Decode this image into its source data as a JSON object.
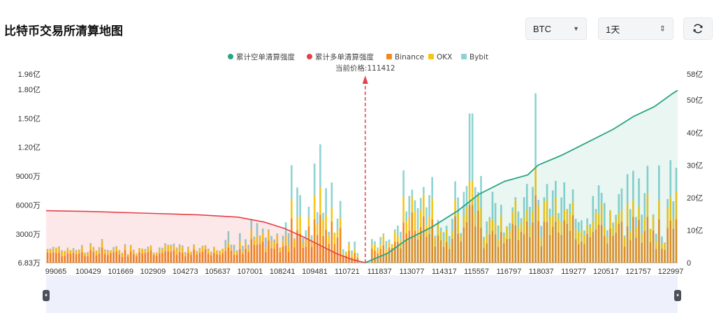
{
  "page": {
    "title": "比特币交易所清算地图"
  },
  "controls": {
    "coin_select": {
      "value": "BTC"
    },
    "range_select": {
      "value": "1天"
    },
    "refresh": {
      "icon": "refresh-icon"
    }
  },
  "colors": {
    "short_cum": "#27a584",
    "long_cum": "#e5404a",
    "binance": "#f08a1c",
    "okx": "#f5c518",
    "bybit": "#8dd3d3"
  },
  "chart_data": {
    "type": "bar",
    "legend": {
      "position": "top-center",
      "items": [
        {
          "name": "累计空单清算强度",
          "color": "#27a584",
          "shape": "circle"
        },
        {
          "name": "累计多单清算强度",
          "color": "#e5404a",
          "shape": "circle"
        },
        {
          "name": "Binance",
          "color": "#f08a1c",
          "shape": "square"
        },
        {
          "name": "OKX",
          "color": "#f5c518",
          "shape": "square"
        },
        {
          "name": "Bybit",
          "color": "#8dd3d3",
          "shape": "square"
        }
      ]
    },
    "current_price_label": "当前价格:111412",
    "current_price": 111412,
    "x_tick_labels": [
      "99065",
      "100429",
      "101669",
      "102909",
      "104273",
      "105637",
      "107001",
      "108241",
      "109481",
      "110721",
      "111837",
      "113077",
      "114317",
      "115557",
      "116797",
      "118037",
      "119277",
      "120517",
      "121757",
      "122997"
    ],
    "x_range": [
      99065,
      123500
    ],
    "left_axis": {
      "tick_labels": [
        "6.83万",
        "3000万",
        "6000万",
        "9000万",
        "1.20亿",
        "1.50亿",
        "1.80亿",
        "1.96亿"
      ],
      "tick_values": [
        68300,
        30000000,
        60000000,
        90000000,
        120000000,
        150000000,
        180000000,
        196000000
      ],
      "range": [
        68300,
        196000000
      ]
    },
    "right_axis": {
      "tick_labels": [
        "0",
        "10亿",
        "20亿",
        "30亿",
        "40亿",
        "50亿",
        "58亿"
      ],
      "tick_values": [
        0,
        1000000000,
        2000000000,
        3000000000,
        4000000000,
        5000000000,
        5800000000
      ],
      "range": [
        0,
        5800000000
      ]
    },
    "long_cumulative": {
      "name": "累计多单清算强度",
      "points": [
        [
          99065,
          1600000000
        ],
        [
          101000,
          1570000000
        ],
        [
          103000,
          1520000000
        ],
        [
          105000,
          1470000000
        ],
        [
          106500,
          1400000000
        ],
        [
          107500,
          1250000000
        ],
        [
          108300,
          1050000000
        ],
        [
          109000,
          800000000
        ],
        [
          109700,
          520000000
        ],
        [
          110300,
          280000000
        ],
        [
          110900,
          100000000
        ],
        [
          111412,
          0
        ]
      ]
    },
    "short_cumulative": {
      "name": "累计空单清算强度",
      "points": [
        [
          111412,
          0
        ],
        [
          112300,
          300000000
        ],
        [
          113000,
          700000000
        ],
        [
          114000,
          1100000000
        ],
        [
          115000,
          1600000000
        ],
        [
          115800,
          2100000000
        ],
        [
          116800,
          2500000000
        ],
        [
          117700,
          2700000000
        ],
        [
          118100,
          3000000000
        ],
        [
          119000,
          3300000000
        ],
        [
          120000,
          3700000000
        ],
        [
          121000,
          4100000000
        ],
        [
          121800,
          4500000000
        ],
        [
          122600,
          4800000000
        ],
        [
          123300,
          5200000000
        ],
        [
          123500,
          5300000000
        ]
      ]
    },
    "exchange_bars": {
      "series": [
        "Binance",
        "OKX",
        "Bybit"
      ],
      "highlights": [
        {
          "price": 109500,
          "Binance": 45000000,
          "OKX": 25000000,
          "Bybit": 33000000
        },
        {
          "price": 109700,
          "Binance": 50000000,
          "OKX": 28000000,
          "Bybit": 45000000
        },
        {
          "price": 115500,
          "Binance": 60000000,
          "OKX": 25000000,
          "Bybit": 70000000
        },
        {
          "price": 118000,
          "Binance": 70000000,
          "OKX": 30000000,
          "Bybit": 76000000
        },
        {
          "price": 122800,
          "Binance": 45000000,
          "OKX": 20000000,
          "Bybit": 36000000
        }
      ]
    }
  }
}
